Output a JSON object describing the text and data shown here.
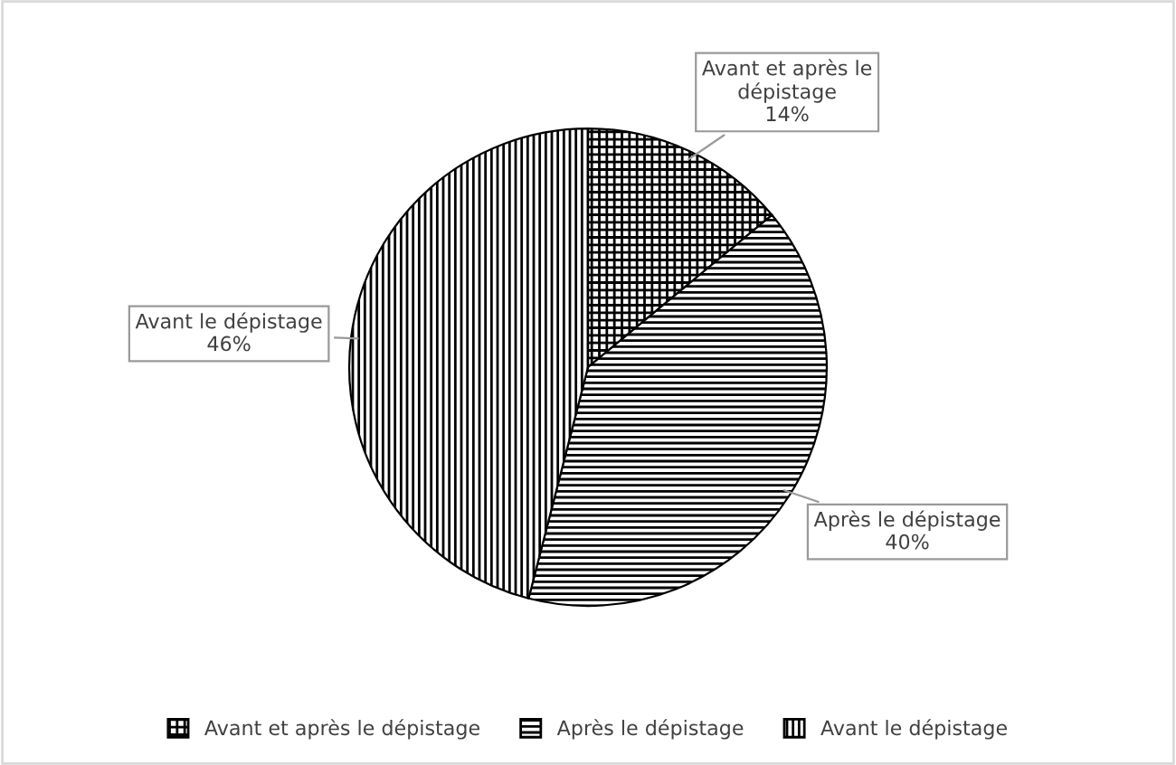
{
  "chart_data": {
    "type": "pie",
    "categories": [
      "Avant et après le dépistage",
      "Après le dépistage",
      "Avant le dépistage"
    ],
    "values": [
      14,
      40,
      46
    ],
    "colors": [
      "#000000",
      "#000000",
      "#000000"
    ],
    "value_labels": [
      "Avant et après le\ndépistage\n14%",
      "Après le dépistage\n40%",
      "Avant le dépistage\n46%"
    ],
    "legend": "bottom"
  }
}
